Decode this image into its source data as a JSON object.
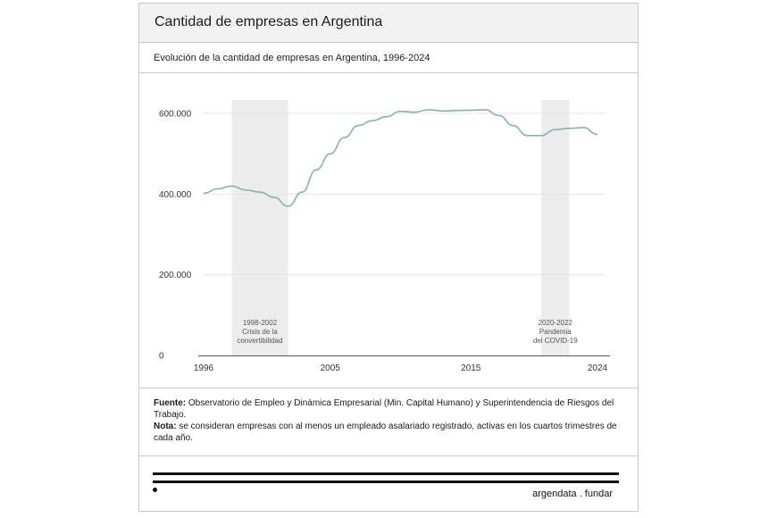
{
  "header": {
    "title": "Cantidad de empresas en Argentina",
    "subtitle": "Evolución de la cantidad de empresas en Argentina, 1996-2024"
  },
  "chart_data": {
    "type": "line",
    "title": "Cantidad de empresas en Argentina",
    "subtitle": "Evolución de la cantidad de empresas en Argentina, 1996-2024",
    "xlabel": "",
    "ylabel": "",
    "x_ticks": [
      "1996",
      "2005",
      "2015",
      "2024"
    ],
    "y_ticks": [
      "0",
      "200.000",
      "400.000",
      "600.000"
    ],
    "xlim": [
      1996,
      2024
    ],
    "ylim": [
      0,
      600000
    ],
    "grid": "horizontal",
    "line_color": "#7fb5b3",
    "series": [
      {
        "x": [
          1996,
          1997,
          1998,
          1999,
          2000,
          2001,
          2002,
          2003,
          2004,
          2005,
          2006,
          2007,
          2008,
          2009,
          2010,
          2011,
          2012,
          2013,
          2014,
          2015,
          2016,
          2017,
          2018,
          2019,
          2020,
          2021,
          2022,
          2023,
          2024
        ],
        "y": [
          402000,
          413000,
          420000,
          410000,
          405000,
          392000,
          370000,
          405000,
          460000,
          500000,
          540000,
          570000,
          582000,
          592000,
          605000,
          603000,
          609000,
          606000,
          607000,
          608000,
          609000,
          595000,
          570000,
          545000,
          545000,
          560000,
          563000,
          565000,
          548000
        ]
      }
    ],
    "annotations": [
      {
        "range": [
          1998,
          2002
        ],
        "lines": [
          "1998-2002",
          "Crisis de la",
          "convertibilidad"
        ]
      },
      {
        "range": [
          2020,
          2022
        ],
        "lines": [
          "2020-2022",
          "Pandemia",
          "del COVID-19"
        ]
      }
    ]
  },
  "notes": {
    "source_label": "Fuente:",
    "source_text": " Observatorio de Empleo y Dinámica Empresarial (Min. Capital Humano) y Superintendencia de Riesgos del Trabajo.",
    "note_label": "Nota:",
    "note_text": " se consideran empresas con al menos un empleado asalariado registrado, activas en los cuartos trimestres de cada año."
  },
  "footer": {
    "brand": "argendata . fundar"
  }
}
